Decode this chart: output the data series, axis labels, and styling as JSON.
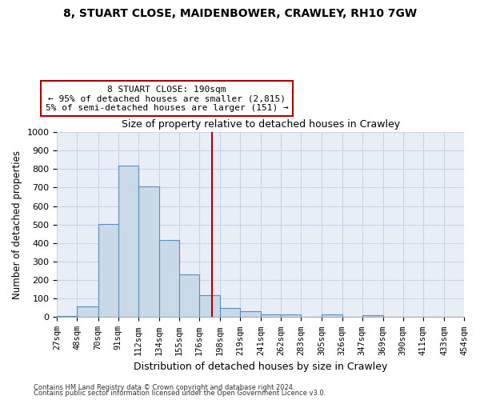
{
  "title": "8, STUART CLOSE, MAIDENBOWER, CRAWLEY, RH10 7GW",
  "subtitle": "Size of property relative to detached houses in Crawley",
  "xlabel": "Distribution of detached houses by size in Crawley",
  "ylabel": "Number of detached properties",
  "bin_edges": [
    27,
    48,
    70,
    91,
    112,
    134,
    155,
    176,
    198,
    219,
    241,
    262,
    283,
    305,
    326,
    347,
    369,
    390,
    411,
    433,
    454
  ],
  "bar_values": [
    7,
    57,
    505,
    820,
    708,
    418,
    230,
    117,
    50,
    30,
    13,
    13,
    0,
    13,
    0,
    10,
    0,
    0,
    0,
    0
  ],
  "bar_face_color": "#c9d9e8",
  "bar_edge_color": "#5b8db8",
  "vline_x": 190,
  "vline_color": "#aa0000",
  "annotation_line1": "8 STUART CLOSE: 190sqm",
  "annotation_line2": "← 95% of detached houses are smaller (2,815)",
  "annotation_line3": "5% of semi-detached houses are larger (151) →",
  "annotation_box_edgecolor": "#aa0000",
  "annotation_box_facecolor": "#ffffff",
  "ylim": [
    0,
    1000
  ],
  "yticks": [
    0,
    100,
    200,
    300,
    400,
    500,
    600,
    700,
    800,
    900,
    1000
  ],
  "grid_color": "#c8d4e8",
  "background_color": "#e8eef6",
  "footnote1": "Contains HM Land Registry data © Crown copyright and database right 2024.",
  "footnote2": "Contains public sector information licensed under the Open Government Licence v3.0."
}
